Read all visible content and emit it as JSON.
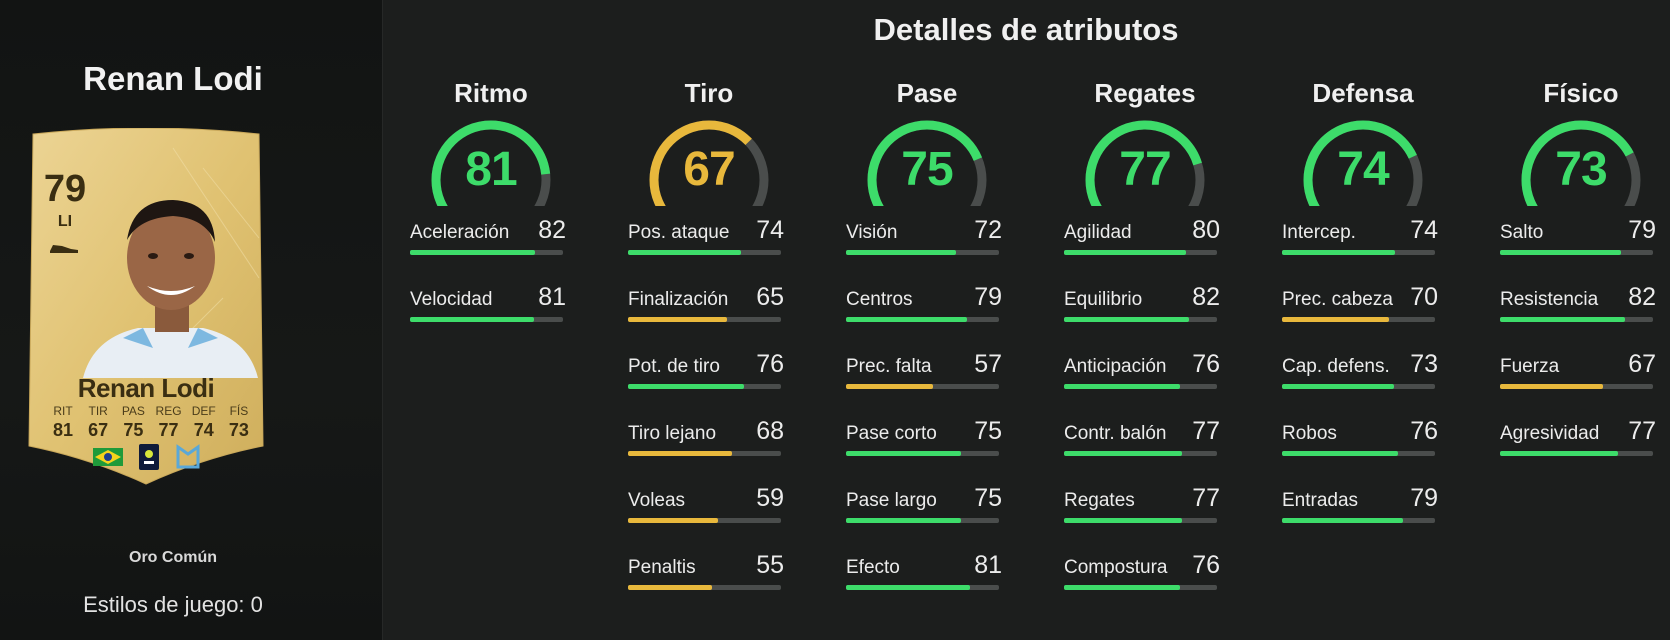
{
  "player": {
    "name": "Renan Lodi",
    "rating": "79",
    "position": "LI",
    "card_tier": "Oro Común",
    "playstyles": "Estilos de juego: 0",
    "card_stat_labels": [
      "RIT",
      "TIR",
      "PAS",
      "REG",
      "DEF",
      "FÍS"
    ],
    "card_stat_values": [
      "81",
      "67",
      "75",
      "77",
      "74",
      "73"
    ]
  },
  "section_title": "Detalles de atributos",
  "colors": {
    "green": "#3ddc6a",
    "yellow": "#e8b83c",
    "track": "#4a4d4c",
    "card_gold": "#e3c77a"
  },
  "categories": [
    {
      "name": "Ritmo",
      "value": "81",
      "color": "green",
      "attributes": [
        {
          "label": "Aceleración",
          "value": "82",
          "color": "green"
        },
        {
          "label": "Velocidad",
          "value": "81",
          "color": "green"
        }
      ]
    },
    {
      "name": "Tiro",
      "value": "67",
      "color": "yellow",
      "attributes": [
        {
          "label": "Pos. ataque",
          "value": "74",
          "color": "green"
        },
        {
          "label": "Finalización",
          "value": "65",
          "color": "yellow"
        },
        {
          "label": "Pot. de tiro",
          "value": "76",
          "color": "green"
        },
        {
          "label": "Tiro lejano",
          "value": "68",
          "color": "yellow"
        },
        {
          "label": "Voleas",
          "value": "59",
          "color": "yellow"
        },
        {
          "label": "Penaltis",
          "value": "55",
          "color": "yellow"
        }
      ]
    },
    {
      "name": "Pase",
      "value": "75",
      "color": "green",
      "attributes": [
        {
          "label": "Visión",
          "value": "72",
          "color": "green"
        },
        {
          "label": "Centros",
          "value": "79",
          "color": "green"
        },
        {
          "label": "Prec. falta",
          "value": "57",
          "color": "yellow"
        },
        {
          "label": "Pase corto",
          "value": "75",
          "color": "green"
        },
        {
          "label": "Pase largo",
          "value": "75",
          "color": "green"
        },
        {
          "label": "Efecto",
          "value": "81",
          "color": "green"
        }
      ]
    },
    {
      "name": "Regates",
      "value": "77",
      "color": "green",
      "attributes": [
        {
          "label": "Agilidad",
          "value": "80",
          "color": "green"
        },
        {
          "label": "Equilibrio",
          "value": "82",
          "color": "green"
        },
        {
          "label": "Anticipación",
          "value": "76",
          "color": "green"
        },
        {
          "label": "Contr. balón",
          "value": "77",
          "color": "green"
        },
        {
          "label": "Regates",
          "value": "77",
          "color": "green"
        },
        {
          "label": "Compostura",
          "value": "76",
          "color": "green"
        }
      ]
    },
    {
      "name": "Defensa",
      "value": "74",
      "color": "green",
      "attributes": [
        {
          "label": "Intercep.",
          "value": "74",
          "color": "green"
        },
        {
          "label": "Prec. cabeza",
          "value": "70",
          "color": "yellow"
        },
        {
          "label": "Cap. defens.",
          "value": "73",
          "color": "green"
        },
        {
          "label": "Robos",
          "value": "76",
          "color": "green"
        },
        {
          "label": "Entradas",
          "value": "79",
          "color": "green"
        }
      ]
    },
    {
      "name": "Físico",
      "value": "73",
      "color": "green",
      "attributes": [
        {
          "label": "Salto",
          "value": "79",
          "color": "green"
        },
        {
          "label": "Resistencia",
          "value": "82",
          "color": "green"
        },
        {
          "label": "Fuerza",
          "value": "67",
          "color": "yellow"
        },
        {
          "label": "Agresividad",
          "value": "77",
          "color": "green"
        }
      ]
    }
  ]
}
